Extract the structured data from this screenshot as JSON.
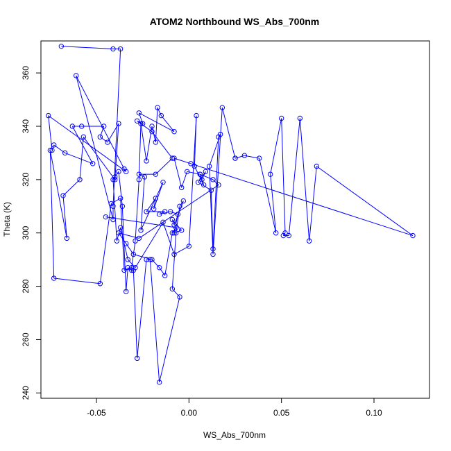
{
  "chart_data": {
    "type": "scatter",
    "title": "ATOM2 Northbound WS_Abs_700nm",
    "xlabel": "WS_Abs_700nm",
    "ylabel": "Theta (K)",
    "xlim": [
      -0.08,
      0.13
    ],
    "ylim": [
      238,
      372
    ],
    "xticks": [
      -0.05,
      0.0,
      0.05,
      0.1
    ],
    "xtick_labels": [
      "-0.05",
      "0.00",
      "0.05",
      "0.10"
    ],
    "yticks": [
      240,
      260,
      280,
      300,
      320,
      340,
      360
    ],
    "ytick_labels": [
      "240",
      "260",
      "280",
      "300",
      "320",
      "340",
      "360"
    ],
    "grid": false,
    "legend": "none",
    "color": "#0000ff",
    "marker": "open-circle",
    "connected": true,
    "x": [
      -0.069,
      -0.041,
      -0.037,
      -0.041,
      -0.041,
      -0.061,
      -0.035,
      -0.034,
      -0.076,
      -0.074,
      -0.073,
      -0.067,
      -0.052,
      -0.063,
      -0.058,
      -0.046,
      -0.048,
      -0.044,
      -0.038,
      -0.04,
      -0.057,
      -0.059,
      -0.068,
      -0.066,
      -0.075,
      -0.073,
      -0.048,
      -0.042,
      -0.037,
      -0.035,
      -0.031,
      -0.029,
      -0.027,
      -0.026,
      -0.023,
      -0.02,
      -0.018,
      -0.017,
      -0.015,
      -0.008,
      -0.027,
      -0.025,
      -0.028,
      -0.02,
      -0.009,
      -0.018,
      -0.027,
      -0.024,
      -0.026,
      -0.014,
      -0.019,
      -0.018,
      -0.023,
      -0.013,
      -0.016,
      -0.01,
      -0.006,
      -0.008,
      -0.004,
      -0.009,
      -0.008,
      -0.003,
      -0.005,
      -0.007,
      -0.009,
      -0.005,
      -0.016,
      -0.021,
      -0.023,
      -0.028,
      -0.03,
      -0.031,
      -0.033,
      -0.034,
      -0.036,
      -0.038,
      -0.04,
      -0.041,
      -0.039,
      -0.037,
      -0.033,
      -0.029,
      -0.014,
      -0.008,
      0.0,
      0.004,
      0.003,
      0.008,
      0.006,
      0.007,
      0.009,
      0.005,
      0.012,
      0.013,
      0.016,
      0.017,
      0.011,
      0.013,
      0.018,
      0.025,
      0.025,
      0.03,
      0.038,
      0.047,
      0.044,
      0.05,
      0.052,
      0.051,
      0.054,
      0.06,
      0.065,
      0.069,
      0.121,
      0.001,
      -0.008,
      -0.004,
      -0.001,
      0.006,
      0.013,
      0.016,
      -0.027,
      -0.038,
      -0.034,
      -0.03,
      -0.02,
      -0.016,
      -0.013,
      -0.009,
      -0.007,
      -0.045
    ],
    "y": [
      370,
      369,
      369,
      310,
      305,
      359,
      324,
      323,
      344,
      331,
      333,
      330,
      326,
      340,
      340,
      340,
      336,
      334,
      341,
      320,
      336,
      320,
      314,
      298,
      331,
      283,
      281,
      311,
      313,
      286,
      287,
      297,
      320,
      341,
      327,
      340,
      334,
      347,
      344,
      338,
      345,
      341,
      342,
      338,
      328,
      322,
      322,
      321,
      301,
      319,
      309,
      313,
      308,
      308,
      307,
      308,
      307,
      300,
      301,
      305,
      303,
      312,
      310,
      300,
      279,
      276,
      244,
      290,
      290,
      253,
      286,
      286,
      287,
      278,
      310,
      323,
      321,
      320,
      297,
      302,
      290,
      287,
      304,
      292,
      295,
      344,
      325,
      318,
      322,
      320,
      323,
      319,
      316,
      294,
      336,
      337,
      325,
      292,
      347,
      328,
      328,
      329,
      328,
      300,
      322,
      343,
      300,
      299,
      299,
      343,
      297,
      325,
      299,
      326,
      328,
      317,
      323,
      322,
      320,
      318,
      298,
      300,
      296,
      292,
      290,
      287,
      284,
      300,
      302,
      306
    ]
  }
}
